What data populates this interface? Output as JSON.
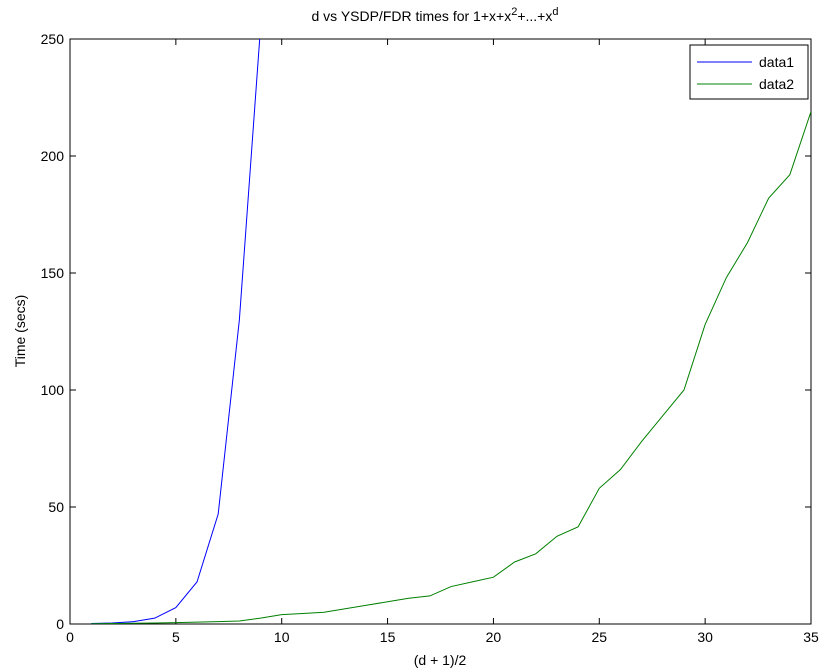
{
  "chart_data": {
    "type": "line",
    "title": {
      "prefix": "d vs YSDP/FDR times for 1+x+x",
      "sup1": "2",
      "middle": "+...+x",
      "sup2": "d"
    },
    "xlabel": "(d + 1)/2",
    "ylabel": "Time (secs)",
    "xlim": [
      0,
      35
    ],
    "ylim": [
      0,
      250
    ],
    "xticks": [
      0,
      5,
      10,
      15,
      20,
      25,
      30,
      35
    ],
    "yticks": [
      0,
      50,
      100,
      150,
      200,
      250
    ],
    "grid": false,
    "legend_position": "top-right",
    "series": [
      {
        "name": "data1",
        "color": "#0000ff",
        "x": [
          1,
          2,
          3,
          4,
          5,
          6,
          7,
          8,
          9
        ],
        "y": [
          0.2,
          0.4,
          1,
          2.5,
          7,
          18,
          47,
          130,
          255
        ]
      },
      {
        "name": "data2",
        "color": "#008000",
        "x": [
          1,
          2,
          3,
          4,
          5,
          6,
          7,
          8,
          9,
          10,
          11,
          12,
          13,
          14,
          15,
          16,
          17,
          18,
          19,
          20,
          21,
          22,
          23,
          24,
          25,
          26,
          27,
          28,
          29,
          30,
          31,
          32,
          33,
          34,
          35
        ],
        "y": [
          0.1,
          0.2,
          0.3,
          0.4,
          0.6,
          0.8,
          1,
          1.3,
          2.5,
          4,
          4.5,
          5,
          6.5,
          8,
          9.5,
          11,
          12,
          16,
          18,
          20,
          26.5,
          30,
          37.5,
          41.5,
          58,
          66,
          78,
          89,
          100,
          128,
          148,
          163,
          182,
          192,
          219
        ]
      }
    ]
  }
}
